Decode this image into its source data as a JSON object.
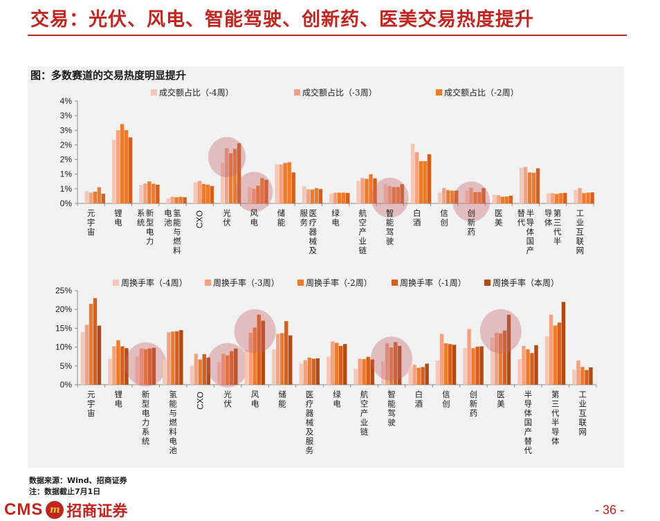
{
  "slide": {
    "title": "交易：光伏、风电、智能驾驶、创新药、医美交易热度提升",
    "figure_title": "图：多数赛道的交易热度明显提升",
    "source_line": "数据来源：Wind、招商证券",
    "note_line": "注：数据截止7月1日",
    "logo_cms": "CMS",
    "logo_badge": "m",
    "logo_cn": "招商证券",
    "page_number": "- 36 -"
  },
  "colors": {
    "accent": "#c0251f",
    "panel_bg": "#f2f2f2",
    "highlight": "#c4666b"
  },
  "chart_data": [
    {
      "type": "bar",
      "title": "",
      "xlabel": "",
      "ylabel": "",
      "ylim": [
        0,
        4
      ],
      "yunit": "%",
      "ytick_labels": [
        "0%",
        "1%",
        "1%",
        "2%",
        "2%",
        "3%",
        "3%",
        "4%"
      ],
      "grid": false,
      "legend_position": "top",
      "categories": [
        "元宇宙",
        "锂电",
        "新型电力系统",
        "氢能与燃料电池",
        "CXO",
        "光伏",
        "风电",
        "储能",
        "医疗器械及服务",
        "绿电",
        "航空产业链",
        "智能驾驶",
        "白酒",
        "信创",
        "创新药",
        "医美",
        "半导体国产替代",
        "第三代半导体",
        "工业互联网"
      ],
      "highlighted_categories": [
        "光伏",
        "风电",
        "智能驾驶",
        "创新药"
      ],
      "series": [
        {
          "name": "成交额占比（-4周）",
          "color": "#f8c6b7",
          "values": [
            0.48,
            2.48,
            0.72,
            0.2,
            0.82,
            1.6,
            0.62,
            1.53,
            0.67,
            0.38,
            0.88,
            0.76,
            2.33,
            0.42,
            0.5,
            0.34,
            1.38,
            0.39,
            0.52
          ]
        },
        {
          "name": "成交额占比（-3周）",
          "color": "#f4a180",
          "values": [
            0.42,
            2.86,
            0.78,
            0.26,
            0.88,
            2.16,
            0.58,
            1.52,
            0.55,
            0.42,
            0.99,
            0.68,
            2.0,
            0.6,
            0.61,
            0.32,
            1.42,
            0.4,
            0.6
          ]
        },
        {
          "name": "成交额占比（-2周）",
          "color": "#ef7a2c",
          "values": [
            0.46,
            3.1,
            0.86,
            0.24,
            0.76,
            1.96,
            0.69,
            1.58,
            0.54,
            0.42,
            0.96,
            0.64,
            1.65,
            0.52,
            0.44,
            0.26,
            1.21,
            0.37,
            0.4
          ]
        }
      ],
      "series_extended_values": [
        [
          0.63,
          2.86,
          0.77,
          0.26,
          0.73,
          2.13,
          0.99,
          1.61,
          0.6,
          0.42,
          1.14,
          0.64,
          1.65,
          0.5,
          0.44,
          0.27,
          1.2,
          0.4,
          0.42
        ],
        [
          0.38,
          2.58,
          0.73,
          0.24,
          0.68,
          2.35,
          0.92,
          1.21,
          0.56,
          0.41,
          0.98,
          0.75,
          1.92,
          0.5,
          0.6,
          0.3,
          1.37,
          0.41,
          0.43
        ]
      ]
    },
    {
      "type": "bar",
      "title": "",
      "xlabel": "",
      "ylabel": "",
      "ylim": [
        0,
        25
      ],
      "yunit": "%",
      "ytick_labels": [
        "0%",
        "5%",
        "10%",
        "15%",
        "20%",
        "25%"
      ],
      "grid": false,
      "legend_position": "top",
      "categories": [
        "元宇宙",
        "锂电",
        "新型电力系统",
        "氢能与燃料电池",
        "CXO",
        "光伏",
        "风电",
        "储能",
        "医疗器械及服务",
        "绿电",
        "航空产业链",
        "智能驾驶",
        "白酒",
        "信创",
        "创新药",
        "医美",
        "半导体国产替代",
        "第三代半导体",
        "工业互联网"
      ],
      "highlighted_categories": [
        "新型电力系统",
        "光伏",
        "风电",
        "智能驾驶",
        "医美"
      ],
      "series": [
        {
          "name": "周换手率（-4周）",
          "color": "#f8c6b7",
          "values": [
            14.0,
            6.9,
            7.5,
            6.7,
            5.1,
            6.0,
            9.3,
            9.4,
            5.6,
            7.4,
            4.2,
            6.2,
            4.7,
            6.4,
            9.8,
            12.5,
            6.8,
            12.8,
            4.0
          ]
        },
        {
          "name": "周换手率（-3周）",
          "color": "#f4a180",
          "values": [
            15.9,
            10.2,
            9.6,
            13.9,
            8.2,
            8.2,
            13.8,
            13.5,
            6.5,
            11.5,
            6.9,
            11.0,
            5.3,
            13.5,
            14.8,
            13.8,
            10.3,
            18.6,
            6.4
          ]
        },
        {
          "name": "周换手率（-2周）",
          "color": "#ef7a2c",
          "values": [
            21.5,
            11.8,
            9.4,
            14.1,
            6.7,
            7.8,
            15.2,
            13.7,
            7.2,
            11.1,
            6.8,
            9.9,
            4.5,
            11.0,
            9.7,
            13.6,
            9.4,
            15.7,
            4.7
          ]
        },
        {
          "name": "周换手率（-1周）",
          "color": "#d75f1d",
          "values": [
            23.0,
            10.2,
            9.6,
            14.2,
            8.1,
            8.9,
            18.6,
            16.9,
            6.9,
            10.3,
            7.4,
            11.3,
            4.7,
            10.8,
            10.1,
            14.4,
            8.4,
            16.5,
            3.9
          ]
        },
        {
          "name": "周换手率（本周）",
          "color": "#b24a16",
          "values": [
            15.7,
            9.7,
            9.8,
            14.5,
            7.2,
            9.6,
            17.0,
            13.1,
            7.0,
            10.8,
            6.7,
            10.3,
            5.6,
            10.6,
            10.2,
            18.6,
            10.5,
            22.0,
            4.6
          ]
        }
      ]
    }
  ]
}
